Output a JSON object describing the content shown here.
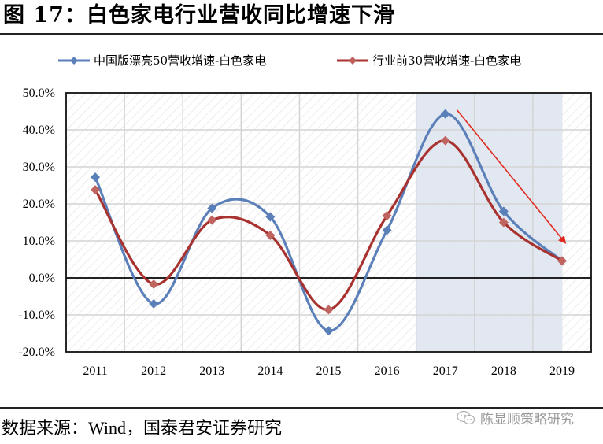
{
  "title": "图 17：白色家电行业营收同比增速下滑",
  "legend": [
    {
      "label": "中国版漂亮50营收增速-白色家电",
      "color": "#5b7fb8",
      "marker": "diamond"
    },
    {
      "label": "行业前30营收增速-白色家电",
      "color": "#a8322f",
      "marker": "diamond"
    }
  ],
  "source": "数据来源：Wind，国泰君安证券研究",
  "watermark": {
    "icon": "wechat-icon",
    "text": "陈显顺策略研究"
  },
  "chart_data": {
    "type": "line",
    "title": "图 17：白色家电行业营收同比增速下滑",
    "xlabel": "",
    "ylabel": "",
    "categories": [
      "2011",
      "2012",
      "2013",
      "2014",
      "2015",
      "2016",
      "2017",
      "2018",
      "2019"
    ],
    "series": [
      {
        "name": "中国版漂亮50营收增速-白色家电",
        "color": "#5b7fb8",
        "values": [
          27.2,
          -7.0,
          18.8,
          16.5,
          -14.3,
          12.9,
          44.3,
          18.0,
          4.6
        ]
      },
      {
        "name": "行业前30营收增速-白色家电",
        "color": "#a8322f",
        "values": [
          23.8,
          -1.7,
          15.6,
          11.5,
          -8.6,
          16.8,
          37.1,
          15.0,
          4.6
        ]
      }
    ],
    "ylim": [
      -20,
      50
    ],
    "yticks": [
      "50.0%",
      "40.0%",
      "30.0%",
      "20.0%",
      "10.0%",
      "0.0%",
      "-10.0%",
      "-20.0%"
    ],
    "ytick_values": [
      50,
      40,
      30,
      20,
      10,
      0,
      -10,
      -20
    ],
    "grid": true,
    "smooth": true,
    "legend_position": "top",
    "highlight_region": {
      "from": "2017",
      "to": "2019",
      "color": "#dde4ef"
    },
    "annotation": {
      "type": "arrow",
      "color": "#e02a20",
      "from": [
        "2017",
        44.5
      ],
      "to": [
        "2019",
        9.5
      ],
      "meaning": "downward trend"
    }
  }
}
